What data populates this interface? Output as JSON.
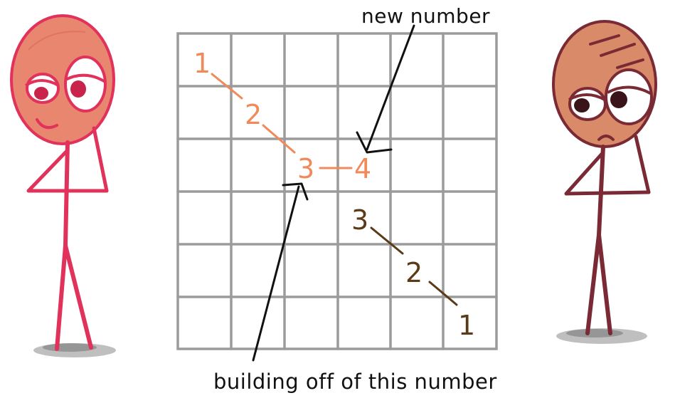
{
  "annotations": {
    "new_number": "new number",
    "building_off": "building off of this number"
  },
  "orange_sequence": [
    "1",
    "2",
    "3",
    "4"
  ],
  "brown_sequence": [
    "3",
    "2",
    "1"
  ],
  "colors": {
    "grid": "#9b9b9b",
    "orange_path": "#ef8a5a",
    "brown_path": "#5a3a18",
    "left_figure": "#e0325a",
    "left_face": "#e9866f",
    "right_figure": "#7a2a34",
    "right_face": "#d98a68",
    "shadow": "#8a8a8a",
    "ink": "#111111"
  }
}
